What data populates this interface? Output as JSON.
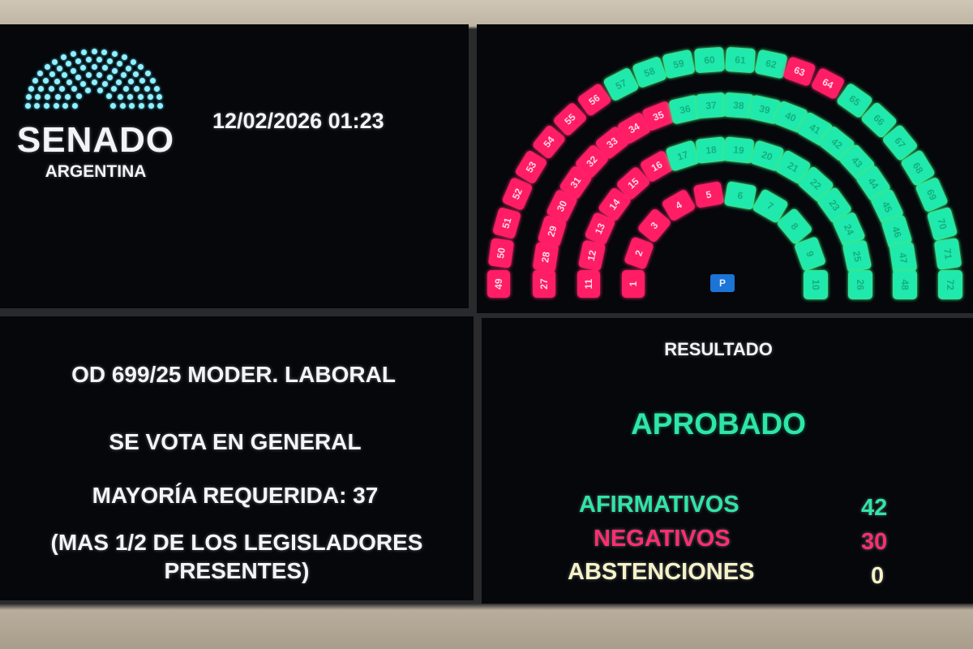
{
  "header": {
    "logo_title": "SENADO",
    "logo_subtitle": "ARGENTINA",
    "datetime": "12/02/2026 01:23"
  },
  "motion": {
    "title": "OD 699/25 MODER. LABORAL",
    "stage": "SE VOTA EN GENERAL",
    "majority": "MAYORÍA REQUERIDA: 37",
    "majority_note_line1": "(MAS 1/2 DE LOS LEGISLADORES",
    "majority_note_line2": "PRESENTES)"
  },
  "result": {
    "heading": "RESULTADO",
    "outcome": "APROBADO",
    "tallies": [
      {
        "label": "AFIRMATIVOS",
        "value": "42",
        "color": "#2ee6a6"
      },
      {
        "label": "NEGATIVOS",
        "value": "30",
        "color": "#ff2d6f"
      },
      {
        "label": "ABSTENCIONES",
        "value": "0",
        "color": "#f6f2c8"
      }
    ]
  },
  "colors": {
    "afirmativo": "#1fe9ad",
    "negativo": "#ff1d66",
    "presidencia": "#1b74d6"
  },
  "hemicycle": {
    "presidency_label": "P",
    "rows": [
      {
        "seats": [
          [
            1,
            "neg"
          ],
          [
            2,
            "neg"
          ],
          [
            3,
            "neg"
          ],
          [
            4,
            "neg"
          ],
          [
            5,
            "neg"
          ],
          [
            6,
            "afi"
          ],
          [
            7,
            "afi"
          ],
          [
            8,
            "afi"
          ],
          [
            9,
            "afi"
          ],
          [
            10,
            "afi"
          ]
        ]
      },
      {
        "seats": [
          [
            11,
            "neg"
          ],
          [
            12,
            "neg"
          ],
          [
            13,
            "neg"
          ],
          [
            14,
            "neg"
          ],
          [
            15,
            "neg"
          ],
          [
            16,
            "neg"
          ],
          [
            17,
            "afi"
          ],
          [
            18,
            "afi"
          ],
          [
            19,
            "afi"
          ],
          [
            20,
            "afi"
          ],
          [
            21,
            "afi"
          ],
          [
            22,
            "afi"
          ],
          [
            23,
            "afi"
          ],
          [
            24,
            "afi"
          ],
          [
            25,
            "afi"
          ],
          [
            26,
            "afi"
          ]
        ]
      },
      {
        "seats": [
          [
            27,
            "neg"
          ],
          [
            28,
            "neg"
          ],
          [
            29,
            "neg"
          ],
          [
            30,
            "neg"
          ],
          [
            31,
            "neg"
          ],
          [
            32,
            "neg"
          ],
          [
            33,
            "neg"
          ],
          [
            34,
            "neg"
          ],
          [
            35,
            "neg"
          ],
          [
            36,
            "afi"
          ],
          [
            37,
            "afi"
          ],
          [
            38,
            "afi"
          ],
          [
            39,
            "afi"
          ],
          [
            40,
            "afi"
          ],
          [
            41,
            "afi"
          ],
          [
            42,
            "afi"
          ],
          [
            43,
            "afi"
          ],
          [
            44,
            "afi"
          ],
          [
            45,
            "afi"
          ],
          [
            46,
            "afi"
          ],
          [
            47,
            "afi"
          ],
          [
            48,
            "afi"
          ]
        ]
      },
      {
        "seats": [
          [
            49,
            "neg"
          ],
          [
            50,
            "neg"
          ],
          [
            51,
            "neg"
          ],
          [
            52,
            "neg"
          ],
          [
            53,
            "neg"
          ],
          [
            54,
            "neg"
          ],
          [
            55,
            "neg"
          ],
          [
            56,
            "neg"
          ],
          [
            57,
            "afi"
          ],
          [
            58,
            "afi"
          ],
          [
            59,
            "afi"
          ],
          [
            60,
            "afi"
          ],
          [
            61,
            "afi"
          ],
          [
            62,
            "afi"
          ],
          [
            63,
            "neg"
          ],
          [
            64,
            "neg"
          ],
          [
            65,
            "afi"
          ],
          [
            66,
            "afi"
          ],
          [
            67,
            "afi"
          ],
          [
            68,
            "afi"
          ],
          [
            69,
            "afi"
          ],
          [
            70,
            "afi"
          ],
          [
            71,
            "afi"
          ],
          [
            72,
            "afi"
          ]
        ]
      }
    ]
  }
}
